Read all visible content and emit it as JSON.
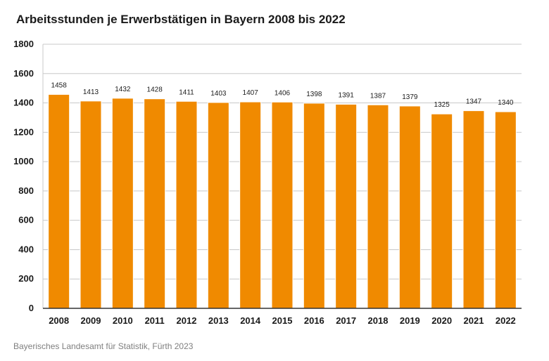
{
  "title": "Arbeitsstunden je Erwerbstätigen in Bayern 2008 bis 2022",
  "source": "Bayerisches Landesamt für Statistik, Fürth 2023",
  "colors": {
    "bar": "#f08a00",
    "grid": "#c8c8c8",
    "axis": "#333333"
  },
  "chart_data": {
    "type": "bar",
    "title": "Arbeitsstunden je Erwerbstätigen in Bayern 2008 bis 2022",
    "xlabel": "",
    "ylabel": "",
    "ylim": [
      0,
      1800
    ],
    "yticks": [
      0,
      200,
      400,
      600,
      800,
      1000,
      1200,
      1400,
      1600,
      1800
    ],
    "grid": true,
    "categories": [
      "2008",
      "2009",
      "2010",
      "2011",
      "2012",
      "2013",
      "2014",
      "2015",
      "2016",
      "2017",
      "2018",
      "2019",
      "2020",
      "2021",
      "2022"
    ],
    "values": [
      1458,
      1413,
      1432,
      1428,
      1411,
      1403,
      1407,
      1406,
      1398,
      1391,
      1387,
      1379,
      1325,
      1347,
      1340
    ]
  }
}
